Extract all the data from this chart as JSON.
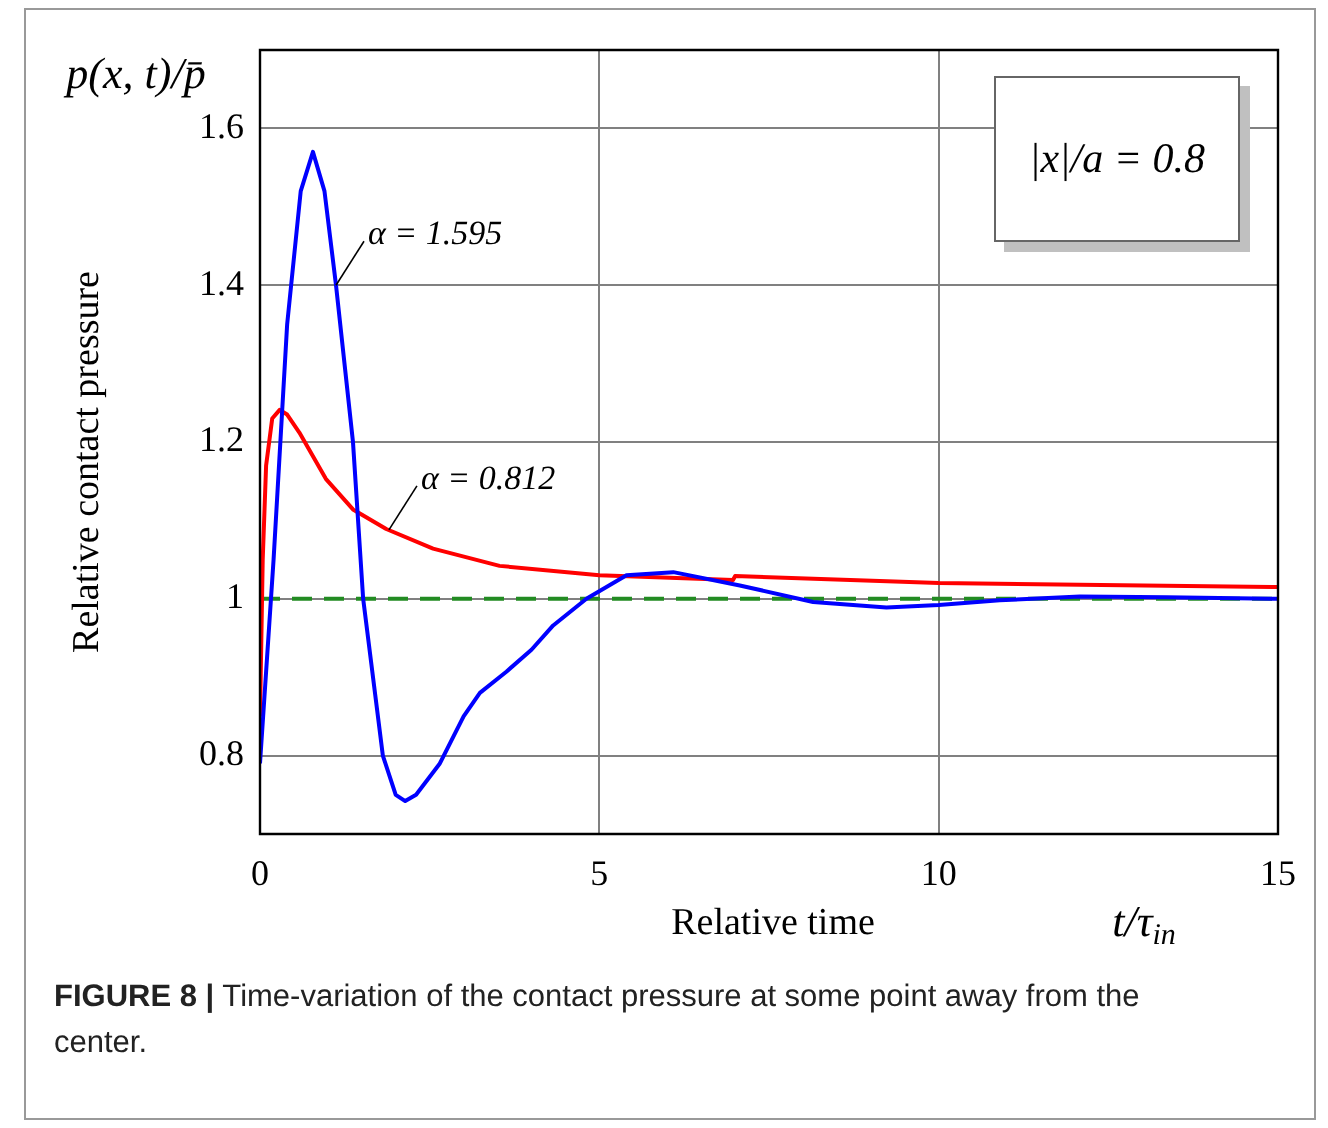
{
  "chart_data": {
    "type": "line",
    "xlabel": "Relative time",
    "ylabel": "Relative contact pressure",
    "xlim": [
      0,
      15
    ],
    "xticks": [
      0,
      5,
      10,
      15
    ],
    "ylim": [
      0.7,
      1.7
    ],
    "yticks": [
      0.8,
      1,
      1.2,
      1.4,
      1.6
    ],
    "grid": true,
    "legend": false,
    "marker": "none",
    "line_style": "solid",
    "series": [
      {
        "color": "#0000ff",
        "x": [
          0,
          0.2,
          0.4,
          0.6,
          0.78,
          0.95,
          1.12,
          1.37,
          1.52,
          1.81,
          2.0,
          2.14,
          2.3,
          2.65,
          3.0,
          3.24,
          3.63,
          4.0,
          4.32,
          4.81,
          5.4,
          6.09,
          7.07,
          8.15,
          9.23,
          10.0,
          10.9,
          12.08,
          13.36,
          15
        ],
        "values": [
          0.79,
          1.05,
          1.35,
          1.52,
          1.57,
          1.52,
          1.4,
          1.2,
          1.0,
          0.8,
          0.75,
          0.742,
          0.75,
          0.79,
          0.85,
          0.88,
          0.907,
          0.935,
          0.966,
          1.0,
          1.03,
          1.034,
          1.017,
          0.996,
          0.989,
          0.992,
          0.998,
          1.003,
          1.002,
          1.0
        ]
      },
      {
        "color": "#ff0000",
        "x": [
          0,
          0.04,
          0.09,
          0.18,
          0.29,
          0.4,
          0.58,
          0.97,
          1.37,
          1.86,
          2.55,
          3.53,
          5.0,
          6.97,
          7.0,
          10.0,
          15
        ],
        "values": [
          0.85,
          1.05,
          1.17,
          1.23,
          1.241,
          1.235,
          1.212,
          1.153,
          1.114,
          1.089,
          1.064,
          1.042,
          1.03,
          1.024,
          1.029,
          1.02,
          1.015
        ]
      }
    ],
    "ref_lines": [
      {
        "axis": "y",
        "value": 1,
        "color": "#228b22",
        "line_style": "dashed"
      }
    ],
    "annotations": [
      "p(x, t)/p̄",
      "|x|/a = 0.8",
      "t/τ$_{in}$",
      {
        "text": "α = 1.595",
        "x": 1.12,
        "y": 1.4
      },
      {
        "text": "α = 0.812",
        "x": 1.9,
        "y": 1.088
      },
      "FIGURE 8 |",
      "Time-variation of the contact pressure at some point away from the center."
    ]
  }
}
